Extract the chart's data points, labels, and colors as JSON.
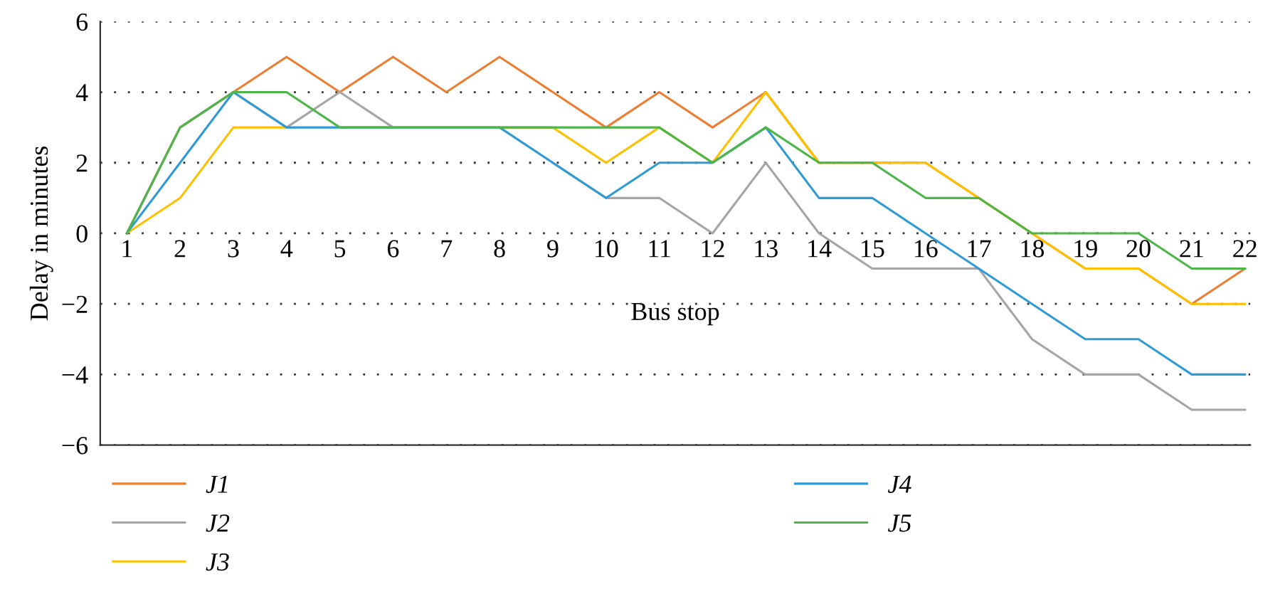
{
  "chart_data": {
    "type": "line",
    "xlabel": "Bus stop",
    "ylabel": "Delay in minutes",
    "categories": [
      "1",
      "2",
      "3",
      "4",
      "5",
      "6",
      "7",
      "8",
      "9",
      "10",
      "11",
      "12",
      "13",
      "14",
      "15",
      "16",
      "17",
      "18",
      "19",
      "20",
      "21",
      "22"
    ],
    "ylim": [
      -6,
      6
    ],
    "yticks": [
      {
        "value": -6,
        "label": "−6"
      },
      {
        "value": -4,
        "label": "−4"
      },
      {
        "value": -2,
        "label": "−2"
      },
      0,
      2,
      4,
      6
    ],
    "grid": "y",
    "legend": "bottom",
    "series": [
      {
        "name": "J1",
        "color": "#ed7d31",
        "values": [
          0,
          3,
          4,
          5,
          4,
          5,
          4,
          5,
          4,
          3,
          4,
          3,
          4,
          2,
          2,
          2,
          1,
          0,
          -1,
          -1,
          -2,
          -1
        ]
      },
      {
        "name": "J2",
        "color": "#a5a5a5",
        "values": [
          0,
          3,
          4,
          3,
          4,
          3,
          null,
          null,
          2,
          1,
          1,
          0,
          2,
          0,
          -1,
          -1,
          -1,
          -3,
          -4,
          -4,
          -5,
          -5
        ]
      },
      {
        "name": "J3",
        "color": "#ffc000",
        "values": [
          0,
          1,
          3,
          3,
          null,
          null,
          null,
          3,
          3,
          2,
          3,
          2,
          4,
          2,
          2,
          2,
          1,
          0,
          -1,
          -1,
          -2,
          -2
        ]
      },
      {
        "name": "J4",
        "color": "#2e9bd6",
        "values": [
          0,
          2,
          4,
          3,
          3,
          3,
          3,
          3,
          2,
          1,
          2,
          2,
          3,
          1,
          1,
          0,
          -1,
          -2,
          -3,
          -3,
          -4,
          -4
        ]
      },
      {
        "name": "J5",
        "color": "#4cb648",
        "values": [
          0,
          3,
          4,
          4,
          3,
          3,
          3,
          3,
          3,
          3,
          3,
          2,
          3,
          2,
          2,
          1,
          1,
          0,
          0,
          0,
          -1,
          -1
        ]
      }
    ]
  }
}
